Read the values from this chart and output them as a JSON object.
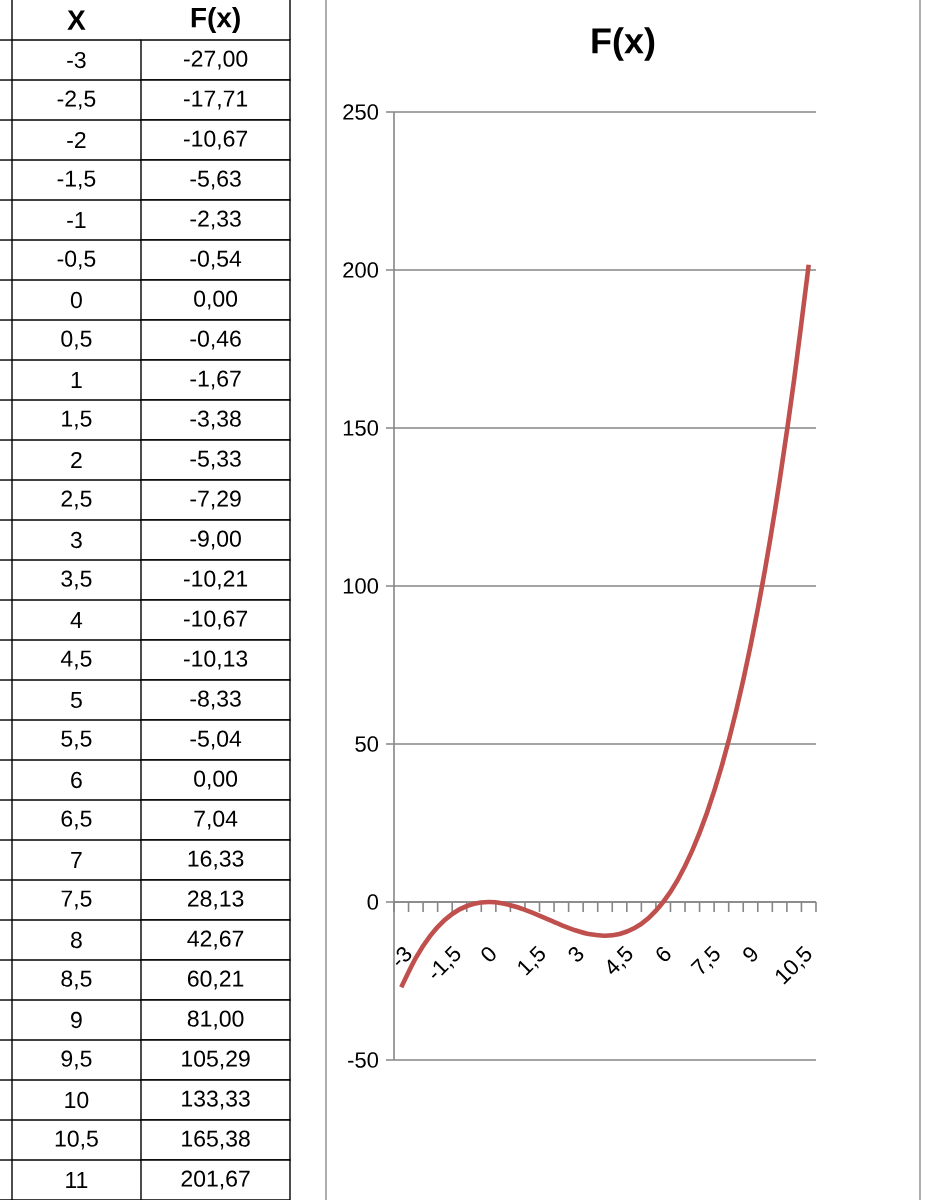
{
  "chart_data": [
    {
      "type": "heatmap",
      "ylabel": "X",
      "categories": [
        "F(x)"
      ],
      "y_categories": [
        "-3",
        "-2,5",
        "-2",
        "-1,5",
        "-1",
        "-0,5",
        "0",
        "0,5",
        "1",
        "1,5",
        "2",
        "2,5",
        "3",
        "3,5",
        "4",
        "4,5",
        "5",
        "5,5",
        "6",
        "6,5",
        "7",
        "7,5",
        "8",
        "8,5",
        "9",
        "9,5",
        "10",
        "10,5",
        "11"
      ],
      "cells": [
        [
          null
        ],
        [
          null
        ],
        [
          null
        ],
        [
          null
        ],
        [
          null
        ],
        [
          null
        ],
        [
          null
        ],
        [
          null
        ],
        [
          null
        ],
        [
          null
        ],
        [
          null
        ],
        [
          null
        ],
        [
          null
        ],
        [
          null
        ],
        [
          null
        ],
        [
          null
        ],
        [
          null
        ],
        [
          null
        ],
        [
          null
        ],
        [
          null
        ],
        [
          null
        ],
        [
          null
        ],
        [
          null
        ],
        [
          null
        ],
        [
          null
        ],
        [
          null
        ],
        [
          null
        ],
        [
          null
        ],
        [
          null
        ]
      ],
      "cell_labels": [
        [
          "-27,00"
        ],
        [
          "-17,71"
        ],
        [
          "-10,67"
        ],
        [
          "-5,63"
        ],
        [
          "-2,33"
        ],
        [
          "-0,54"
        ],
        [
          "0,00"
        ],
        [
          "-0,46"
        ],
        [
          "-1,67"
        ],
        [
          "-3,38"
        ],
        [
          "-5,33"
        ],
        [
          "-7,29"
        ],
        [
          "-9,00"
        ],
        [
          "-10,21"
        ],
        [
          "-10,67"
        ],
        [
          "-10,13"
        ],
        [
          "-8,33"
        ],
        [
          "-5,04"
        ],
        [
          "0,00"
        ],
        [
          "7,04"
        ],
        [
          "16,33"
        ],
        [
          "28,13"
        ],
        [
          "42,67"
        ],
        [
          "60,21"
        ],
        [
          "81,00"
        ],
        [
          "105,29"
        ],
        [
          "133,33"
        ],
        [
          "165,38"
        ],
        [
          "201,67"
        ]
      ]
    },
    {
      "type": "line",
      "title": "F(x)",
      "categories": [
        "-3",
        null,
        null,
        "-1,5",
        null,
        null,
        "0",
        null,
        null,
        "1,5",
        null,
        null,
        "3",
        null,
        null,
        "4,5",
        null,
        null,
        "6",
        null,
        null,
        "7,5",
        null,
        null,
        "9",
        null,
        null,
        "10,5",
        null
      ],
      "values": [
        -27.0,
        -17.71,
        -10.67,
        -5.63,
        -2.33,
        -0.54,
        0.0,
        -0.46,
        -1.67,
        -3.38,
        -5.33,
        -7.29,
        -9.0,
        -10.21,
        -10.67,
        -10.13,
        -8.33,
        -5.04,
        0.0,
        7.04,
        16.33,
        28.13,
        42.67,
        60.21,
        81.0,
        105.29,
        133.33,
        165.38,
        201.67
      ],
      "color": "#c0504d",
      "marker": "none",
      "grid": "y",
      "ylim": [
        -50,
        250
      ],
      "yticks": [
        -50,
        0,
        50,
        100,
        150,
        200,
        250
      ]
    }
  ]
}
